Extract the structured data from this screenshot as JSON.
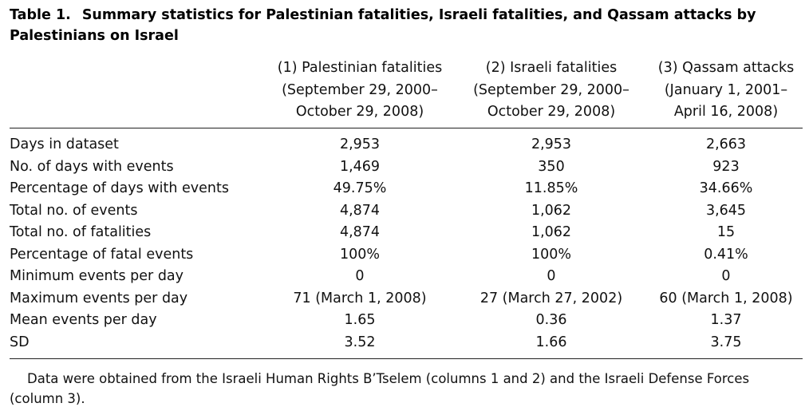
{
  "table": {
    "label": "Table 1.",
    "title": "Summary statistics for Palestinian fatalities, Israeli fatalities, and Qassam attacks by Palestinians on Israel",
    "columns": [
      {
        "name": "(1) Palestinian fatalities",
        "period_line1": "(September 29, 2000–",
        "period_line2": "October 29, 2008)"
      },
      {
        "name": "(2) Israeli fatalities",
        "period_line1": "(September 29, 2000–",
        "period_line2": "October 29, 2008)"
      },
      {
        "name": "(3) Qassam attacks",
        "period_line1": "(January 1, 2001–",
        "period_line2": "April 16, 2008)"
      }
    ],
    "rows": [
      {
        "label": "Days in dataset",
        "values": [
          "2,953",
          "2,953",
          "2,663"
        ]
      },
      {
        "label": "No. of days with events",
        "values": [
          "1,469",
          "350",
          "923"
        ]
      },
      {
        "label": "Percentage of days with events",
        "values": [
          "49.75%",
          "11.85%",
          "34.66%"
        ]
      },
      {
        "label": "Total no. of events",
        "values": [
          "4,874",
          "1,062",
          "3,645"
        ]
      },
      {
        "label": "Total no. of fatalities",
        "values": [
          "4,874",
          "1,062",
          "15"
        ]
      },
      {
        "label": "Percentage of fatal events",
        "values": [
          "100%",
          "100%",
          "0.41%"
        ]
      },
      {
        "label": "Minimum events per day",
        "values": [
          "0",
          "0",
          "0"
        ]
      },
      {
        "label": "Maximum events per day",
        "values": [
          "71 (March 1, 2008)",
          "27 (March 27, 2002)",
          "60 (March 1, 2008)"
        ]
      },
      {
        "label": "Mean events per day",
        "values": [
          "1.65",
          "0.36",
          "1.37"
        ]
      },
      {
        "label": "SD",
        "values": [
          "3.52",
          "1.66",
          "3.75"
        ]
      }
    ],
    "footnote": "Data were obtained from the Israeli Human Rights B’Tselem (columns 1 and 2) and the Israeli Defense Forces (column 3)."
  }
}
